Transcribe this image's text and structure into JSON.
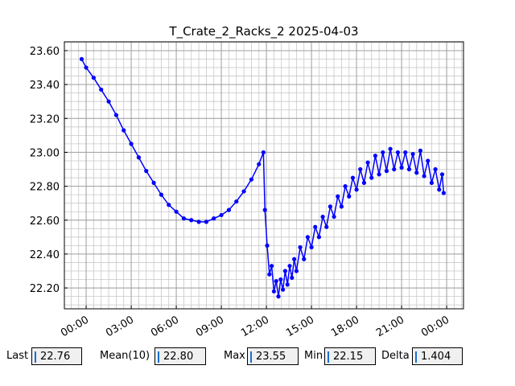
{
  "chart_data": {
    "type": "line",
    "title": "T_Crate_2_Racks_2 2025-04-03",
    "x": [
      -0.3,
      0,
      0.5,
      1,
      1.5,
      2,
      2.5,
      3,
      3.5,
      4,
      4.5,
      5,
      5.5,
      6,
      6.5,
      7,
      7.5,
      8,
      8.5,
      9,
      9.5,
      10,
      10.5,
      11,
      11.5,
      11.8,
      11.9,
      12.05,
      12.2,
      12.35,
      12.5,
      12.65,
      12.8,
      12.95,
      13.1,
      13.25,
      13.4,
      13.55,
      13.7,
      13.85,
      14,
      14.25,
      14.5,
      14.75,
      15,
      15.25,
      15.5,
      15.75,
      16,
      16.25,
      16.5,
      16.75,
      17,
      17.25,
      17.5,
      17.75,
      18,
      18.25,
      18.5,
      18.75,
      19,
      19.25,
      19.5,
      19.75,
      20,
      20.25,
      20.5,
      20.75,
      21,
      21.25,
      21.5,
      21.75,
      22,
      22.25,
      22.5,
      22.75,
      23,
      23.25,
      23.5,
      23.7,
      23.8
    ],
    "series": [
      {
        "color": "#0000ff",
        "values": [
          23.55,
          23.5,
          23.44,
          23.37,
          23.3,
          23.22,
          23.13,
          23.05,
          22.97,
          22.89,
          22.82,
          22.75,
          22.69,
          22.65,
          22.61,
          22.6,
          22.59,
          22.59,
          22.61,
          22.63,
          22.66,
          22.71,
          22.77,
          22.84,
          22.93,
          23.0,
          22.66,
          22.45,
          22.28,
          22.33,
          22.18,
          22.24,
          22.15,
          22.25,
          22.19,
          22.3,
          22.22,
          22.33,
          22.26,
          22.37,
          22.3,
          22.44,
          22.37,
          22.5,
          22.44,
          22.56,
          22.5,
          22.62,
          22.56,
          22.68,
          22.62,
          22.74,
          22.68,
          22.8,
          22.74,
          22.85,
          22.78,
          22.9,
          22.82,
          22.94,
          22.85,
          22.98,
          22.87,
          23.0,
          22.89,
          23.02,
          22.9,
          23.0,
          22.91,
          23.0,
          22.9,
          22.99,
          22.88,
          23.01,
          22.86,
          22.95,
          22.82,
          22.9,
          22.78,
          22.87,
          22.76
        ]
      }
    ],
    "xlim": [
      -1.45,
      25.12
    ],
    "ylim": [
      22.077,
      23.652
    ],
    "xticks": [
      {
        "value": 0,
        "label": "00:00"
      },
      {
        "value": 3,
        "label": "03:00"
      },
      {
        "value": 6,
        "label": "06:00"
      },
      {
        "value": 9,
        "label": "09:00"
      },
      {
        "value": 12,
        "label": "12:00"
      },
      {
        "value": 15,
        "label": "15:00"
      },
      {
        "value": 18,
        "label": "18:00"
      },
      {
        "value": 21,
        "label": "21:00"
      },
      {
        "value": 24,
        "label": "00:00"
      }
    ],
    "yticks": [
      {
        "value": 22.2,
        "label": "22.20"
      },
      {
        "value": 22.4,
        "label": "22.40"
      },
      {
        "value": 22.6,
        "label": "22.60"
      },
      {
        "value": 22.8,
        "label": "22.80"
      },
      {
        "value": 23.0,
        "label": "23.00"
      },
      {
        "value": 23.2,
        "label": "23.20"
      },
      {
        "value": 23.4,
        "label": "23.40"
      },
      {
        "value": 23.6,
        "label": "23.60"
      }
    ],
    "grid": true,
    "minor_grid": true
  },
  "stats": [
    {
      "label": "Last",
      "value": "22.76"
    },
    {
      "label": "Mean(10)",
      "value": "22.80"
    },
    {
      "label": "Max",
      "value": "23.55"
    },
    {
      "label": "Min",
      "value": "22.15"
    },
    {
      "label": "Delta",
      "value": "1.404"
    }
  ]
}
